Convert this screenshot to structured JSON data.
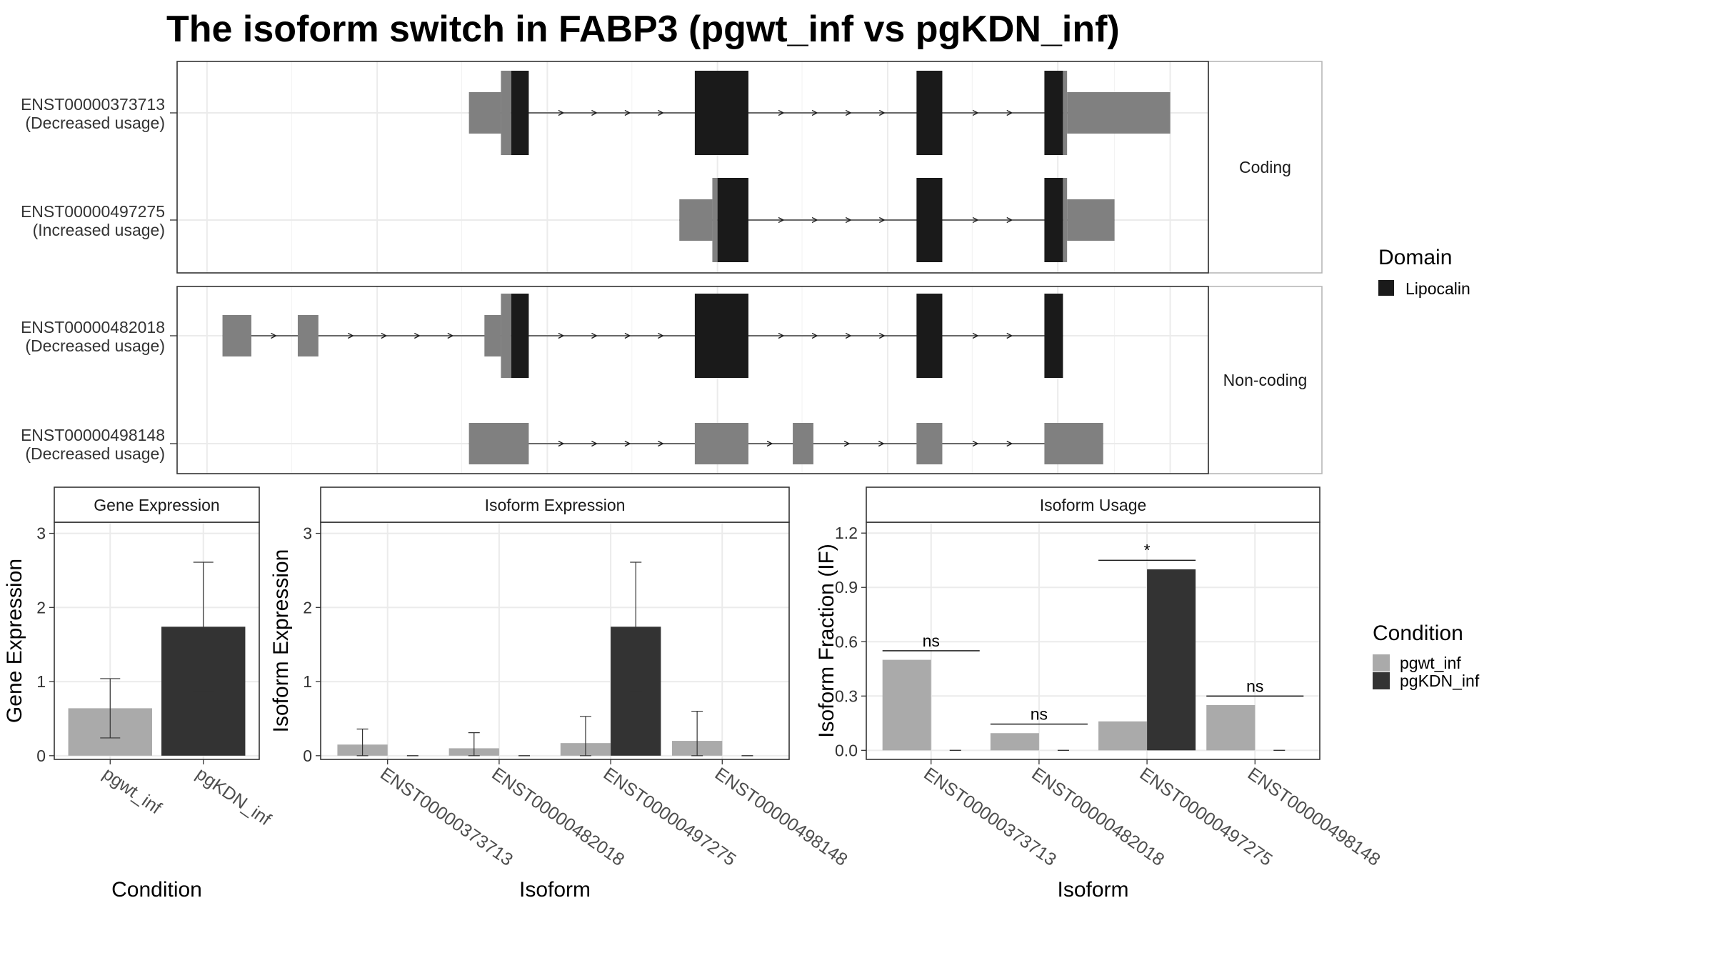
{
  "title": "The isoform switch in FABP3 (pgwt_inf vs pgKDN_inf)",
  "colors": {
    "utr": "#808080",
    "domain": "#1a1a1a",
    "cond1": "#aaaaaa",
    "cond2": "#333333",
    "grid": "#ebebeb",
    "frame": "#333333",
    "strip_border": "#b3b3b3"
  },
  "structure": {
    "facets": [
      {
        "label": "Coding",
        "tracks": [
          0,
          1
        ]
      },
      {
        "label": "Non-coding",
        "tracks": [
          2,
          3
        ]
      }
    ],
    "tracks": [
      {
        "id": "ENST00000373713",
        "usage": "(Decreased usage)",
        "segments": [
          {
            "x0": 0.283,
            "x1": 0.314,
            "kind": "utr",
            "tall": false
          },
          {
            "x0": 0.314,
            "x1": 0.324,
            "kind": "utr",
            "tall": true
          },
          {
            "x0": 0.324,
            "x1": 0.341,
            "kind": "domain",
            "tall": true
          },
          {
            "x0": 0.502,
            "x1": 0.554,
            "kind": "domain",
            "tall": true
          },
          {
            "x0": 0.717,
            "x1": 0.742,
            "kind": "domain",
            "tall": true
          },
          {
            "x0": 0.841,
            "x1": 0.859,
            "kind": "domain",
            "tall": true
          },
          {
            "x0": 0.859,
            "x1": 0.863,
            "kind": "utr",
            "tall": true
          },
          {
            "x0": 0.863,
            "x1": 0.963,
            "kind": "utr",
            "tall": false
          }
        ]
      },
      {
        "id": "ENST00000497275",
        "usage": "(Increased usage)",
        "segments": [
          {
            "x0": 0.487,
            "x1": 0.519,
            "kind": "utr",
            "tall": false
          },
          {
            "x0": 0.519,
            "x1": 0.524,
            "kind": "utr",
            "tall": true
          },
          {
            "x0": 0.524,
            "x1": 0.554,
            "kind": "domain",
            "tall": true
          },
          {
            "x0": 0.717,
            "x1": 0.742,
            "kind": "domain",
            "tall": true
          },
          {
            "x0": 0.841,
            "x1": 0.859,
            "kind": "domain",
            "tall": true
          },
          {
            "x0": 0.859,
            "x1": 0.863,
            "kind": "utr",
            "tall": true
          },
          {
            "x0": 0.863,
            "x1": 0.909,
            "kind": "utr",
            "tall": false
          }
        ]
      },
      {
        "id": "ENST00000482018",
        "usage": "(Decreased usage)",
        "segments": [
          {
            "x0": 0.044,
            "x1": 0.072,
            "kind": "utr",
            "tall": false
          },
          {
            "x0": 0.117,
            "x1": 0.137,
            "kind": "utr",
            "tall": false
          },
          {
            "x0": 0.298,
            "x1": 0.314,
            "kind": "utr",
            "tall": false
          },
          {
            "x0": 0.314,
            "x1": 0.324,
            "kind": "utr",
            "tall": true
          },
          {
            "x0": 0.324,
            "x1": 0.341,
            "kind": "domain",
            "tall": true
          },
          {
            "x0": 0.502,
            "x1": 0.554,
            "kind": "domain",
            "tall": true
          },
          {
            "x0": 0.717,
            "x1": 0.742,
            "kind": "domain",
            "tall": true
          },
          {
            "x0": 0.841,
            "x1": 0.859,
            "kind": "domain",
            "tall": true
          }
        ]
      },
      {
        "id": "ENST00000498148",
        "usage": "(Decreased usage)",
        "segments": [
          {
            "x0": 0.283,
            "x1": 0.341,
            "kind": "utr",
            "tall": false
          },
          {
            "x0": 0.502,
            "x1": 0.554,
            "kind": "utr",
            "tall": false
          },
          {
            "x0": 0.597,
            "x1": 0.617,
            "kind": "utr",
            "tall": false
          },
          {
            "x0": 0.717,
            "x1": 0.742,
            "kind": "utr",
            "tall": false
          },
          {
            "x0": 0.841,
            "x1": 0.898,
            "kind": "utr",
            "tall": false
          }
        ]
      }
    ],
    "domain_legend": {
      "title": "Domain",
      "items": [
        "Lipocalin"
      ]
    }
  },
  "chart_data": [
    {
      "type": "bar",
      "title": "Gene Expression",
      "xlabel": "Condition",
      "ylabel": "Gene Expression",
      "categories": [
        "pgwt_inf",
        "pgKDN_inf"
      ],
      "values": [
        0.64,
        1.74
      ],
      "err_low": [
        0.24,
        0.87
      ],
      "err_high": [
        1.04,
        2.61
      ],
      "yticks": [
        "0",
        "1",
        "2",
        "3"
      ],
      "ylim": [
        -0.05,
        3.15
      ]
    },
    {
      "type": "bar",
      "title": "Isoform Expression",
      "xlabel": "Isoform",
      "ylabel": "Isoform Expression",
      "categories": [
        "ENST00000373713",
        "ENST00000482018",
        "ENST00000497275",
        "ENST00000498148"
      ],
      "series": [
        {
          "name": "pgwt_inf",
          "values": [
            0.15,
            0.1,
            0.17,
            0.2
          ],
          "err_low": [
            0.0,
            0.0,
            0.0,
            0.0
          ],
          "err_high": [
            0.36,
            0.31,
            0.53,
            0.6
          ]
        },
        {
          "name": "pgKDN_inf",
          "values": [
            0.0,
            0.0,
            1.74,
            0.0
          ],
          "err_low": [
            0.0,
            0.0,
            0.87,
            0.0
          ],
          "err_high": [
            0.0,
            0.0,
            2.61,
            0.0
          ]
        }
      ],
      "yticks": [
        "0",
        "1",
        "2",
        "3"
      ],
      "ylim": [
        -0.05,
        3.15
      ]
    },
    {
      "type": "bar",
      "title": "Isoform Usage",
      "xlabel": "Isoform",
      "ylabel": "Isoform Fraction (IF)",
      "categories": [
        "ENST00000373713",
        "ENST00000482018",
        "ENST00000497275",
        "ENST00000498148"
      ],
      "series": [
        {
          "name": "pgwt_inf",
          "values": [
            0.5,
            0.095,
            0.16,
            0.25
          ]
        },
        {
          "name": "pgKDN_inf",
          "values": [
            0.0,
            0.0,
            1.0,
            0.0
          ]
        }
      ],
      "significance": [
        "ns",
        "ns",
        "*",
        "ns"
      ],
      "significance_y": [
        0.55,
        0.145,
        1.05,
        0.3
      ],
      "yticks": [
        "0.0",
        "0.3",
        "0.6",
        "0.9",
        "1.2"
      ],
      "ylim": [
        -0.05,
        1.26
      ]
    }
  ],
  "condition_legend": {
    "title": "Condition",
    "items": [
      "pgwt_inf",
      "pgKDN_inf"
    ]
  }
}
